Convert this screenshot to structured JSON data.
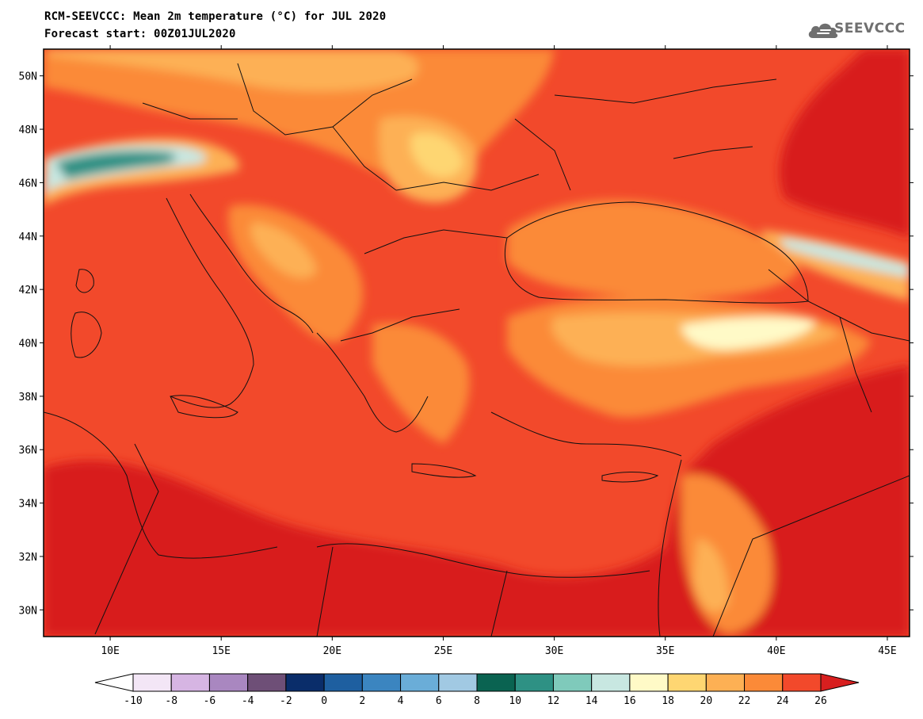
{
  "header": {
    "title": "RCM-SEEVCCC: Mean 2m temperature (°C) for JUL 2020",
    "subtitle": "Forecast start: 00Z01JUL2020",
    "logo_text": "SEEVCCC",
    "logo_icon": "cloud-logo-icon"
  },
  "map": {
    "variable": "Mean 2m temperature",
    "unit": "°C",
    "period": "JUL 2020",
    "lat_range": [
      29,
      51
    ],
    "lon_range": [
      7,
      46
    ],
    "lat_labels": [
      "50N",
      "48N",
      "46N",
      "44N",
      "42N",
      "40N",
      "38N",
      "36N",
      "34N",
      "32N",
      "30N"
    ],
    "lon_labels": [
      "10E",
      "15E",
      "20E",
      "25E",
      "30E",
      "35E",
      "40E",
      "45E"
    ]
  },
  "colorbar": {
    "labels": [
      "-10",
      "-8",
      "-6",
      "-4",
      "-2",
      "0",
      "2",
      "4",
      "6",
      "8",
      "10",
      "12",
      "14",
      "16",
      "18",
      "20",
      "22",
      "24",
      "26"
    ],
    "colors": [
      "#f3e6f6",
      "#d6b5e3",
      "#a987c0",
      "#6e4f77",
      "#0a2d6a",
      "#1e5fa0",
      "#3b85c0",
      "#6aadd8",
      "#a1c9e3",
      "#0a6351",
      "#2e9184",
      "#7fcabb",
      "#c8e7e1",
      "#fffac7",
      "#fed672",
      "#fdb054",
      "#fb8a38",
      "#f2492b"
    ],
    "under_color": "#ffffff",
    "over_color": "#d81f1f"
  }
}
